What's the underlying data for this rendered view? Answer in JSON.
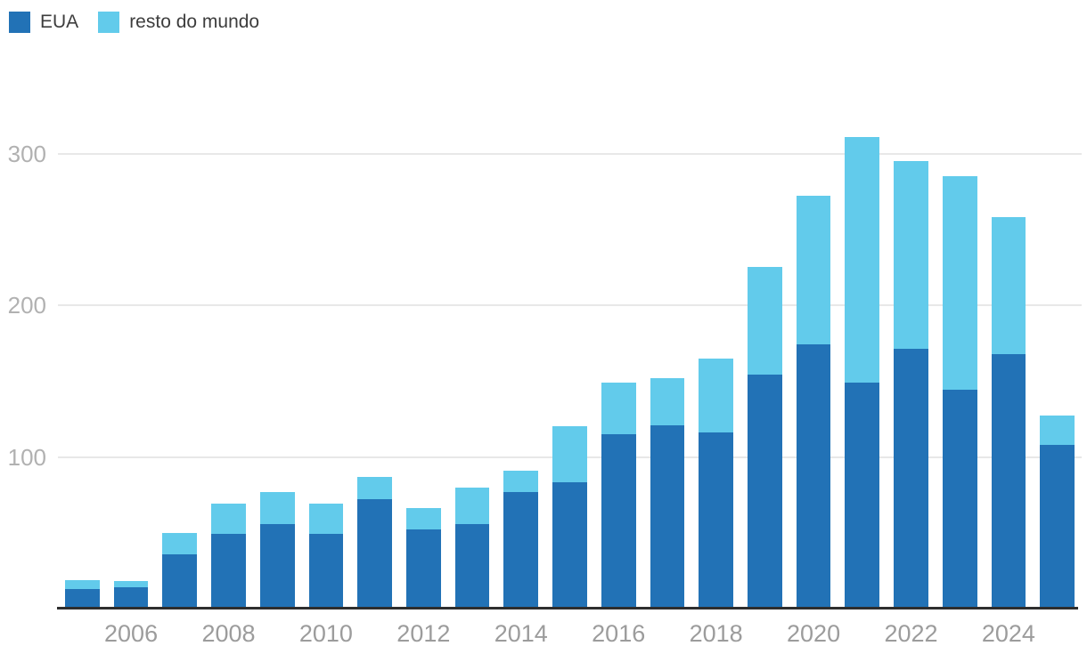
{
  "chart_data": {
    "type": "bar",
    "stacked": true,
    "title": "",
    "xlabel": "",
    "ylabel": "",
    "categories": [
      2005,
      2006,
      2007,
      2008,
      2009,
      2010,
      2011,
      2012,
      2013,
      2014,
      2015,
      2016,
      2017,
      2018,
      2019,
      2020,
      2021,
      2022,
      2023,
      2024,
      2025
    ],
    "series": [
      {
        "name": "EUA",
        "color": "#2272b6",
        "values": [
          13,
          14,
          36,
          49,
          56,
          49,
          72,
          52,
          56,
          77,
          83,
          115,
          121,
          116,
          154,
          174,
          149,
          171,
          144,
          168,
          108
        ]
      },
      {
        "name": "resto do mundo",
        "color": "#62cbeb",
        "values": [
          6,
          4,
          14,
          20,
          21,
          20,
          15,
          14,
          24,
          14,
          37,
          34,
          31,
          49,
          71,
          98,
          162,
          124,
          141,
          90,
          19
        ]
      }
    ],
    "totals": [
      19,
      18,
      50,
      69,
      77,
      69,
      87,
      66,
      80,
      91,
      120,
      149,
      152,
      165,
      225,
      272,
      311,
      295,
      285,
      258,
      127
    ],
    "y_axis": {
      "ticks": [
        100,
        200,
        300
      ],
      "range": [
        0,
        330
      ],
      "label_color": "#b1b1b1"
    },
    "x_axis": {
      "tick_labels": [
        "2006",
        "2008",
        "2010",
        "2012",
        "2014",
        "2016",
        "2018",
        "2020",
        "2022",
        "2024"
      ],
      "label_color": "#9c9c9c"
    },
    "grid": "horizontal",
    "legend_position": "top-left",
    "axis_line_color": "#2e2e2e",
    "gridline_color": "#e8e8e8"
  }
}
